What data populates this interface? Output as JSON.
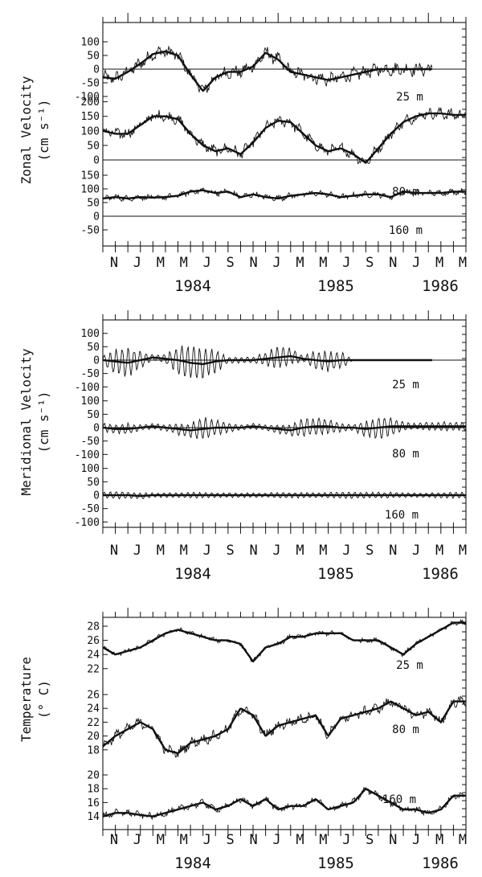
{
  "chart_data": [
    {
      "type": "line",
      "ylabel_lines": [
        "Zonal Velocity",
        "(cm s⁻¹)"
      ],
      "x_start": "1983-11",
      "x_end": "1986-04",
      "month_labels": [
        "N",
        "J",
        "M",
        "M",
        "J",
        "S",
        "N",
        "J",
        "M",
        "M",
        "J",
        "S",
        "N",
        "J",
        "M",
        "M"
      ],
      "year_labels": [
        "1984",
        "1985",
        "1986"
      ],
      "grid": false,
      "series": [
        {
          "depth_label": "25 m",
          "yticks": [
            100,
            50,
            0,
            -50,
            -100
          ],
          "monthly_values": [
            -30,
            -35,
            -10,
            20,
            55,
            65,
            50,
            -20,
            -80,
            -30,
            -10,
            -10,
            10,
            60,
            35,
            -10,
            -20,
            -30,
            -40,
            -30,
            -20,
            -10,
            0,
            0,
            0,
            0,
            0,
            0,
            0
          ],
          "amplitude": 22
        },
        {
          "depth_label": "80 m",
          "yticks": [
            200,
            150,
            100,
            50,
            0
          ],
          "monthly_values": [
            100,
            90,
            90,
            120,
            150,
            150,
            140,
            90,
            50,
            30,
            40,
            20,
            60,
            110,
            135,
            130,
            90,
            50,
            30,
            40,
            20,
            -10,
            40,
            90,
            130,
            150,
            160,
            160,
            155
          ],
          "amplitude": 18
        },
        {
          "depth_label": "160 m",
          "yticks": [
            150,
            100,
            50,
            0,
            -50
          ],
          "monthly_values": [
            65,
            70,
            65,
            70,
            68,
            70,
            75,
            90,
            95,
            85,
            90,
            70,
            80,
            70,
            65,
            75,
            80,
            85,
            80,
            70,
            75,
            80,
            80,
            70,
            90,
            85,
            85,
            85,
            90
          ],
          "amplitude": 10
        }
      ]
    },
    {
      "type": "line",
      "ylabel_lines": [
        "Meridional Velocity",
        "(cm s⁻¹)"
      ],
      "x_start": "1983-11",
      "x_end": "1986-04",
      "month_labels": [
        "N",
        "J",
        "M",
        "M",
        "J",
        "S",
        "N",
        "J",
        "M",
        "M",
        "J",
        "S",
        "N",
        "J",
        "M",
        "M"
      ],
      "year_labels": [
        "1984",
        "1985",
        "1986"
      ],
      "grid": false,
      "series": [
        {
          "depth_label": "25 m",
          "yticks": [
            100,
            50,
            0,
            -50,
            -100
          ],
          "monthly_values": [
            0,
            -5,
            -10,
            0,
            10,
            5,
            0,
            -10,
            -15,
            -5,
            0,
            0,
            0,
            5,
            10,
            15,
            5,
            0,
            -5,
            0,
            0,
            0,
            0,
            0,
            0,
            0,
            0,
            0,
            0
          ],
          "oscillation_amplitude_by_month": [
            15,
            45,
            50,
            30,
            10,
            15,
            50,
            60,
            60,
            40,
            10,
            10,
            10,
            25,
            40,
            30,
            10,
            35,
            35,
            30,
            0,
            0,
            0,
            0,
            0,
            0,
            0,
            0,
            0
          ]
        },
        {
          "depth_label": "80 m",
          "yticks": [
            100,
            50,
            0,
            -50,
            -100
          ],
          "monthly_values": [
            0,
            -5,
            -5,
            0,
            5,
            0,
            -5,
            -10,
            -5,
            0,
            0,
            0,
            5,
            0,
            -5,
            -10,
            0,
            5,
            5,
            0,
            0,
            -5,
            0,
            5,
            5,
            5,
            5,
            5,
            5
          ],
          "oscillation_amplitude_by_month": [
            15,
            15,
            20,
            10,
            10,
            10,
            20,
            25,
            40,
            30,
            15,
            10,
            10,
            10,
            15,
            20,
            30,
            35,
            25,
            15,
            10,
            30,
            40,
            35,
            15,
            10,
            15,
            15,
            15
          ]
        },
        {
          "depth_label": "160 m",
          "yticks": [
            100,
            50,
            0,
            -50,
            -100
          ],
          "monthly_values": [
            0,
            0,
            0,
            -3,
            0,
            0,
            0,
            0,
            0,
            0,
            0,
            0,
            0,
            0,
            0,
            0,
            0,
            0,
            0,
            0,
            0,
            0,
            0,
            0,
            0,
            0,
            0,
            0,
            0
          ],
          "oscillation_amplitude_by_month": [
            10,
            12,
            12,
            10,
            8,
            8,
            8,
            10,
            10,
            8,
            8,
            8,
            8,
            8,
            10,
            10,
            10,
            8,
            10,
            12,
            12,
            10,
            10,
            10,
            8,
            8,
            8,
            10,
            10
          ]
        }
      ]
    },
    {
      "type": "line",
      "ylabel_lines": [
        "Temperature",
        "(° C)"
      ],
      "x_start": "1983-11",
      "x_end": "1986-04",
      "month_labels": [
        "N",
        "J",
        "M",
        "M",
        "J",
        "S",
        "N",
        "J",
        "M",
        "M",
        "J",
        "S",
        "N",
        "J",
        "M",
        "M"
      ],
      "year_labels": [
        "1984",
        "1985",
        "1986"
      ],
      "grid": false,
      "series": [
        {
          "depth_label": "25 m",
          "yticks": [
            28,
            26,
            24,
            22
          ],
          "monthly_values": [
            25,
            24,
            24.5,
            25,
            26,
            27,
            27.5,
            27,
            26.5,
            26,
            26,
            25.5,
            23,
            25,
            25.5,
            26.5,
            26.5,
            27,
            27,
            27,
            26,
            26,
            26,
            25,
            24,
            25.5,
            26.5,
            27.5,
            28.5
          ],
          "amplitude": 0.3
        },
        {
          "depth_label": "80 m",
          "yticks": [
            26,
            24,
            22,
            20,
            18
          ],
          "monthly_values": [
            18.5,
            20,
            21,
            22,
            21,
            18,
            17.5,
            19,
            19.5,
            20,
            21,
            24,
            23,
            20,
            21.5,
            22,
            22.5,
            23,
            20,
            22.5,
            23,
            23.5,
            24,
            25,
            24,
            23,
            23.5,
            22,
            25
          ],
          "amplitude": 0.7
        },
        {
          "depth_label": "160 m",
          "yticks": [
            20,
            18,
            16,
            14
          ],
          "monthly_values": [
            14,
            14.5,
            14.5,
            14.2,
            14,
            14.5,
            15,
            15.5,
            16,
            15,
            15.5,
            16.5,
            15.5,
            16.5,
            15,
            15.5,
            15.5,
            16.5,
            15,
            15.5,
            16,
            18,
            17,
            16,
            15,
            15,
            14.5,
            15,
            17
          ],
          "amplitude": 0.45
        }
      ]
    }
  ]
}
